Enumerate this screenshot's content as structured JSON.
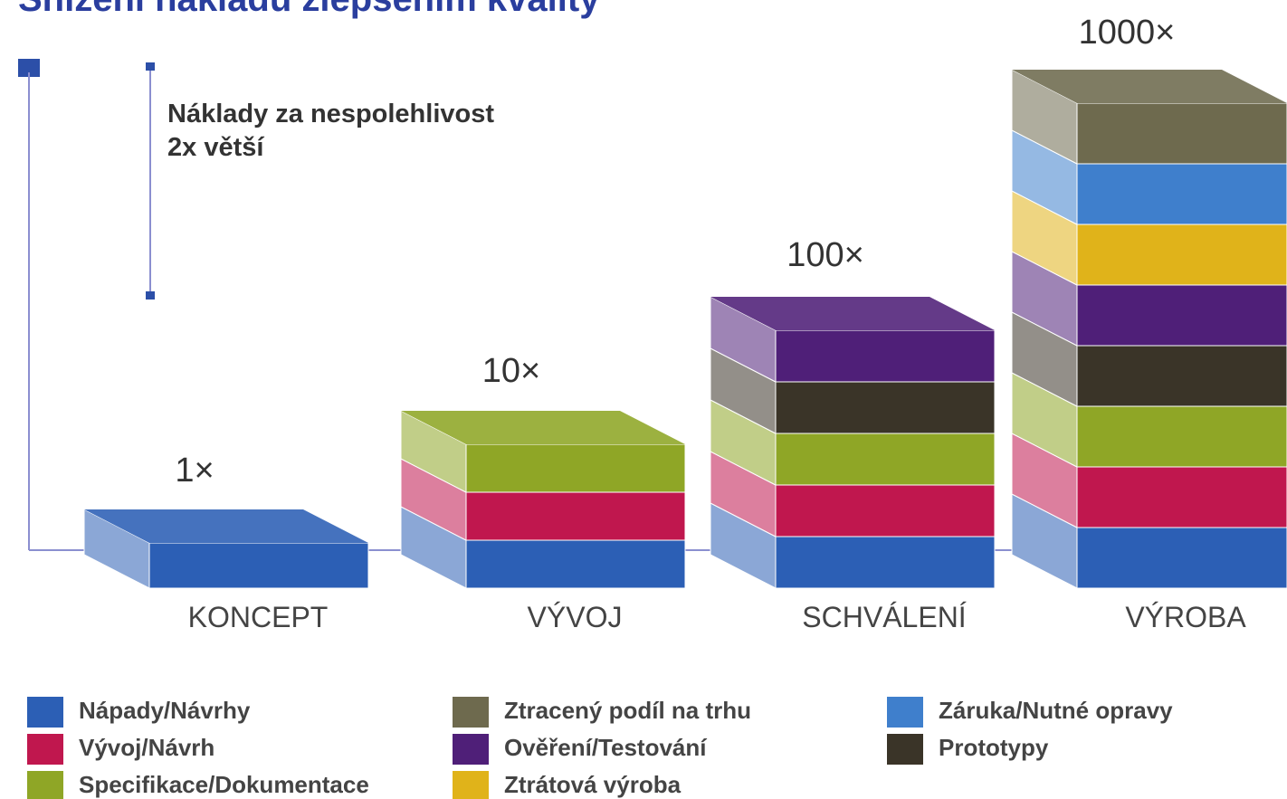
{
  "title": "Snížení nákladů zlepšením kvality",
  "annotation": {
    "line1": "Náklady za nespolehlivost",
    "line2": "2x větší"
  },
  "stages": [
    {
      "label": "KONCEPT",
      "multiplier": "1×",
      "layers": [
        "#2c5fb5"
      ]
    },
    {
      "label": "VÝVOJ",
      "multiplier": "10×",
      "layers": [
        "#2c5fb5",
        "#c0174e",
        "#8fa626"
      ]
    },
    {
      "label": "SCHVÁLENÍ",
      "multiplier": "100×",
      "layers": [
        "#2c5fb5",
        "#c0174e",
        "#8fa626",
        "#3a3428",
        "#4f1f78"
      ]
    },
    {
      "label": "VÝROBA",
      "multiplier": "1000×",
      "layers": [
        "#2c5fb5",
        "#c0174e",
        "#8fa626",
        "#3a3428",
        "#4f1f78",
        "#e0b31a",
        "#3f7fcc",
        "#6e6a4e"
      ]
    }
  ],
  "legend": [
    {
      "name": "Nápady/Návrhy",
      "color": "#2c5fb5"
    },
    {
      "name": "Vývoj/Návrh",
      "color": "#c0174e"
    },
    {
      "name": "Specifikace/Dokumentace",
      "color": "#8fa626"
    },
    {
      "name": "Ztracený podíl na trhu",
      "color": "#6e6a4e"
    },
    {
      "name": "Ověření/Testování",
      "color": "#4f1f78"
    },
    {
      "name": "Ztrátová výroba",
      "color": "#e0b31a"
    },
    {
      "name": "Záruka/Nutné opravy",
      "color": "#3f7fcc"
    },
    {
      "name": "Prototypy",
      "color": "#3a3428"
    }
  ]
}
